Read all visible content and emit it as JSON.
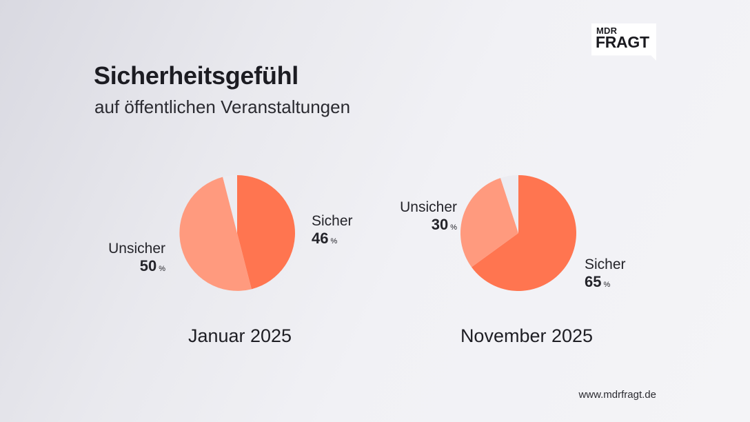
{
  "brand": {
    "logo_top": "MDR",
    "logo_bottom": "FRAGT",
    "url": "www.mdrfragt.de"
  },
  "header": {
    "title": "Sicherheitsgefühl",
    "subtitle": "auf öffentlichen Veranstaltungen"
  },
  "chart_data": [
    {
      "type": "pie",
      "period": "Januar 2025",
      "unit": "%",
      "slices": [
        {
          "label": "Sicher",
          "value": 46,
          "color": "#ff7550"
        },
        {
          "label": "Unsicher",
          "value": 50,
          "color": "#ff9a7e"
        },
        {
          "label": "",
          "value": 4,
          "color": "#ececf1"
        }
      ]
    },
    {
      "type": "pie",
      "period": "November 2025",
      "unit": "%",
      "slices": [
        {
          "label": "Sicher",
          "value": 65,
          "color": "#ff7550"
        },
        {
          "label": "Unsicher",
          "value": 30,
          "color": "#ff9a7e"
        },
        {
          "label": "",
          "value": 5,
          "color": "#ececf1"
        }
      ]
    }
  ]
}
